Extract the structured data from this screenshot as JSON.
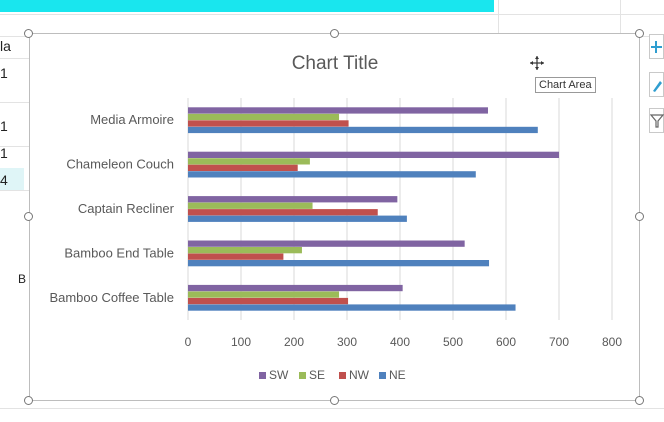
{
  "spreadsheet": {
    "cell_fragments": [
      "la",
      "1",
      "1",
      "1",
      "4",
      "B"
    ]
  },
  "tooltip": {
    "text": "Chart Area"
  },
  "side_buttons": {
    "add_icon": "plus-icon",
    "style_icon": "brush-icon",
    "filter_icon": "filter-icon"
  },
  "chart_data": {
    "type": "bar",
    "orientation": "horizontal",
    "title": "Chart Title",
    "categories": [
      "Bamboo Coffee Table",
      "Bamboo End Table",
      "Captain Recliner",
      "Chameleon Couch",
      "Media Armoire"
    ],
    "series": [
      {
        "name": "NE",
        "color": "#4f81bd",
        "values": [
          618,
          568,
          413,
          543,
          660
        ]
      },
      {
        "name": "NW",
        "color": "#c0504d",
        "values": [
          302,
          180,
          358,
          207,
          303
        ]
      },
      {
        "name": "SE",
        "color": "#9bbb59",
        "values": [
          285,
          215,
          235,
          230,
          285
        ]
      },
      {
        "name": "SW",
        "color": "#8064a2",
        "values": [
          405,
          522,
          395,
          700,
          566
        ]
      }
    ],
    "xticks": [
      "0",
      "100",
      "200",
      "300",
      "400",
      "500",
      "600",
      "700",
      "800"
    ],
    "xlim": [
      0,
      800
    ],
    "legend": [
      "SW",
      "SE",
      "NW",
      "NE"
    ],
    "legend_position": "bottom",
    "grid": true
  }
}
